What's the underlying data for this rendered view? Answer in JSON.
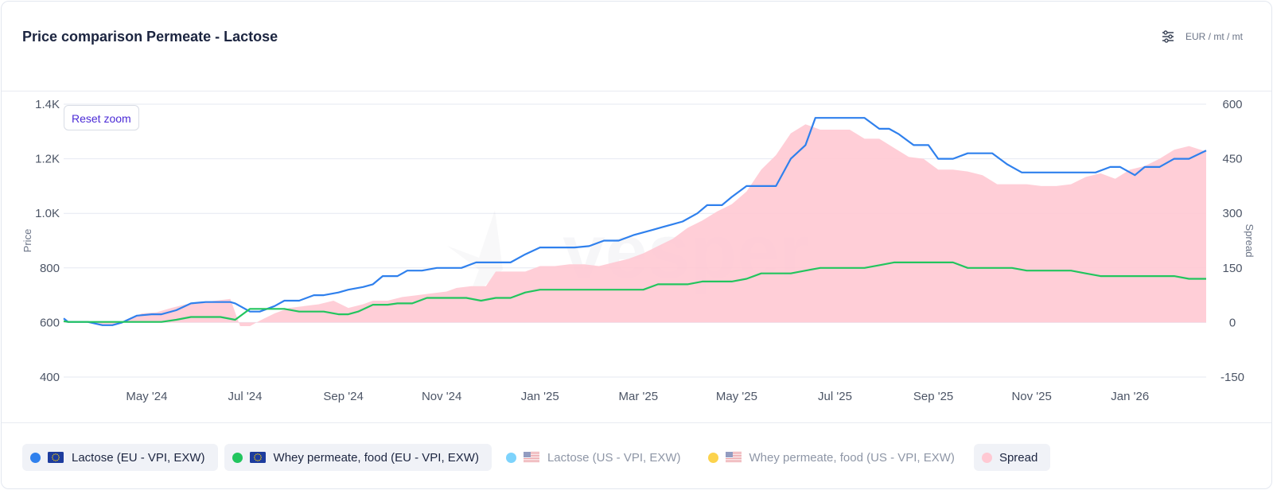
{
  "header": {
    "title": "Price comparison Permeate - Lactose",
    "unit": "EUR / mt / mt",
    "settings_icon": "sliders-icon"
  },
  "watermark": "vesper",
  "reset_zoom": "Reset zoom",
  "colors": {
    "lactose_eu": "#2f80ed",
    "permeate_eu": "#22c55e",
    "lactose_us": "#7dd3fc",
    "permeate_us": "#fcd34d",
    "spread": "#ffc9d3",
    "grid": "#e6e9f2"
  },
  "legend": [
    {
      "label": "Lactose (EU - VPI, EXW)",
      "color": "#2f80ed",
      "flag": "eu",
      "active": true
    },
    {
      "label": "Whey permeate, food (EU - VPI, EXW)",
      "color": "#22c55e",
      "flag": "eu",
      "active": true
    },
    {
      "label": "Lactose (US - VPI, EXW)",
      "color": "#7dd3fc",
      "flag": "us",
      "active": false
    },
    {
      "label": "Whey permeate, food (US - VPI, EXW)",
      "color": "#fcd34d",
      "flag": "us",
      "active": false
    },
    {
      "label": "Spread",
      "color": "#ffc9d3",
      "flag": "",
      "active": true
    }
  ],
  "chart_data": {
    "type": "line",
    "title": "Price comparison Permeate - Lactose",
    "ylabel": "Price",
    "y2label": "Spread",
    "ylim": [
      400,
      1400
    ],
    "y2lim": [
      -150,
      600
    ],
    "yticks": [
      "400",
      "600",
      "800",
      "1.0K",
      "1.2K",
      "1.4K"
    ],
    "y2ticks": [
      "-150",
      "0",
      "150",
      "300",
      "450",
      "600"
    ],
    "xticks": [
      "May '24",
      "Jul '24",
      "Sep '24",
      "Nov '24",
      "Jan '25",
      "Mar '25",
      "May '25",
      "Jul '25",
      "Sep '25",
      "Nov '25",
      "Jan '26"
    ],
    "xtick_months": [
      4,
      6,
      8,
      10,
      12,
      14,
      16,
      18,
      20,
      22,
      24
    ],
    "xlim_months": [
      2.31,
      25.55
    ],
    "series": [
      {
        "name": "Lactose (EU - VPI, EXW)",
        "axis": "left",
        "type": "line",
        "x": [
          2.31,
          2.4,
          2.8,
          3.1,
          3.3,
          3.5,
          3.8,
          4.1,
          4.3,
          4.6,
          4.9,
          5.2,
          5.5,
          5.7,
          5.8,
          6.1,
          6.3,
          6.6,
          6.8,
          7.1,
          7.4,
          7.6,
          7.9,
          8.1,
          8.4,
          8.6,
          8.8,
          9.1,
          9.3,
          9.6,
          9.9,
          10.1,
          10.4,
          10.7,
          10.9,
          11.2,
          11.4,
          11.7,
          12.0,
          12.2,
          12.5,
          12.7,
          13.0,
          13.3,
          13.6,
          13.9,
          14.1,
          14.3,
          14.5,
          14.7,
          14.9,
          15.2,
          15.4,
          15.7,
          15.9,
          16.2,
          16.5,
          16.8,
          17.1,
          17.4,
          17.6,
          17.9,
          18.1,
          18.4,
          18.6,
          18.9,
          19.1,
          19.3,
          19.6,
          19.9,
          20.1,
          20.4,
          20.7,
          21.0,
          21.2,
          21.5,
          21.8,
          22.1,
          22.4,
          22.6,
          22.9,
          23.1,
          23.3,
          23.6,
          23.8,
          24.1,
          24.3,
          24.6,
          24.9,
          25.2,
          25.55
        ],
        "y": [
          615,
          602,
          602,
          590,
          590,
          600,
          625,
          630,
          630,
          645,
          670,
          675,
          675,
          675,
          670,
          640,
          640,
          660,
          680,
          680,
          700,
          700,
          710,
          720,
          730,
          740,
          770,
          770,
          790,
          790,
          800,
          800,
          800,
          820,
          820,
          820,
          820,
          850,
          875,
          875,
          875,
          875,
          880,
          900,
          900,
          920,
          930,
          940,
          950,
          960,
          970,
          1000,
          1030,
          1030,
          1060,
          1100,
          1100,
          1100,
          1200,
          1250,
          1350,
          1350,
          1350,
          1350,
          1350,
          1310,
          1310,
          1290,
          1250,
          1250,
          1200,
          1200,
          1220,
          1220,
          1220,
          1180,
          1150,
          1150,
          1150,
          1150,
          1150,
          1150,
          1150,
          1170,
          1170,
          1140,
          1170,
          1170,
          1200,
          1200,
          1230
        ]
      },
      {
        "name": "Whey permeate, food (EU - VPI, EXW)",
        "axis": "left",
        "type": "line",
        "x": [
          2.31,
          2.4,
          2.8,
          3.1,
          3.4,
          3.7,
          4.0,
          4.3,
          4.6,
          4.9,
          5.2,
          5.5,
          5.8,
          6.1,
          6.3,
          6.6,
          6.8,
          7.1,
          7.4,
          7.6,
          7.9,
          8.1,
          8.3,
          8.6,
          8.9,
          9.1,
          9.4,
          9.7,
          10.0,
          10.2,
          10.5,
          10.8,
          11.1,
          11.4,
          11.7,
          12.0,
          12.3,
          12.6,
          12.9,
          13.2,
          13.5,
          13.8,
          14.1,
          14.4,
          14.7,
          15.0,
          15.3,
          15.6,
          15.9,
          16.2,
          16.5,
          16.8,
          17.1,
          17.4,
          17.7,
          18.0,
          18.3,
          18.6,
          18.9,
          19.2,
          19.5,
          19.8,
          20.1,
          20.4,
          20.7,
          21.0,
          21.3,
          21.6,
          21.9,
          22.2,
          22.5,
          22.8,
          23.1,
          23.4,
          23.7,
          24.0,
          24.3,
          24.6,
          24.9,
          25.2,
          25.55
        ],
        "y": [
          605,
          602,
          602,
          602,
          602,
          602,
          602,
          602,
          610,
          620,
          620,
          620,
          610,
          650,
          650,
          650,
          650,
          640,
          640,
          640,
          630,
          630,
          640,
          665,
          665,
          670,
          670,
          690,
          690,
          690,
          690,
          680,
          690,
          690,
          710,
          720,
          720,
          720,
          720,
          720,
          720,
          720,
          720,
          740,
          740,
          740,
          750,
          750,
          750,
          760,
          780,
          780,
          780,
          790,
          800,
          800,
          800,
          800,
          810,
          820,
          820,
          820,
          820,
          820,
          800,
          800,
          800,
          800,
          790,
          790,
          790,
          790,
          780,
          770,
          770,
          770,
          770,
          770,
          770,
          760,
          760
        ]
      },
      {
        "name": "Spread",
        "axis": "right",
        "type": "area",
        "x": [
          2.31,
          2.4,
          2.8,
          3.1,
          3.4,
          3.6,
          3.9,
          4.2,
          4.5,
          4.8,
          5.1,
          5.4,
          5.7,
          5.9,
          6.1,
          6.3,
          6.6,
          6.9,
          7.2,
          7.5,
          7.8,
          8.1,
          8.4,
          8.6,
          8.9,
          9.2,
          9.5,
          9.8,
          10.1,
          10.3,
          10.6,
          10.9,
          11.1,
          11.4,
          11.7,
          12.0,
          12.3,
          12.6,
          12.9,
          13.2,
          13.5,
          13.8,
          14.1,
          14.4,
          14.7,
          15.0,
          15.3,
          15.6,
          15.9,
          16.2,
          16.5,
          16.8,
          17.1,
          17.4,
          17.7,
          18.0,
          18.3,
          18.6,
          18.9,
          19.2,
          19.5,
          19.8,
          20.1,
          20.4,
          20.7,
          21.0,
          21.3,
          21.6,
          21.9,
          22.2,
          22.5,
          22.8,
          23.1,
          23.4,
          23.7,
          24.0,
          24.3,
          24.6,
          24.9,
          25.2,
          25.55
        ],
        "y": [
          5,
          2,
          2,
          -5,
          -5,
          5,
          25,
          28,
          40,
          50,
          55,
          60,
          65,
          -10,
          -10,
          5,
          25,
          40,
          45,
          50,
          60,
          40,
          50,
          60,
          60,
          70,
          75,
          80,
          85,
          95,
          100,
          100,
          140,
          140,
          140,
          155,
          155,
          160,
          160,
          155,
          165,
          175,
          190,
          210,
          230,
          260,
          280,
          305,
          325,
          360,
          420,
          460,
          520,
          545,
          530,
          530,
          530,
          505,
          505,
          480,
          455,
          450,
          420,
          420,
          415,
          405,
          380,
          380,
          380,
          375,
          375,
          380,
          400,
          410,
          395,
          420,
          430,
          450,
          475,
          485,
          470
        ]
      }
    ]
  }
}
